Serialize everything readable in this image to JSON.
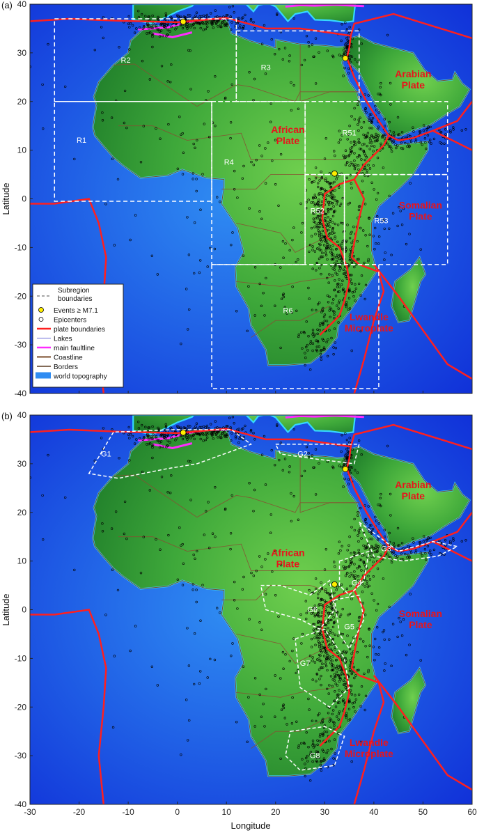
{
  "axes": {
    "xlabel": "Longitude",
    "ylabel": "Latitude",
    "x_ticks": [
      -30,
      -20,
      -10,
      0,
      10,
      20,
      30,
      40,
      50,
      60
    ],
    "y_ticks": [
      40,
      30,
      20,
      10,
      0,
      -10,
      -20,
      -30,
      -40
    ],
    "xlim": [
      -30,
      60
    ],
    "ylim": [
      -40,
      40
    ]
  },
  "colors": {
    "ocean_deep": "#1030d8",
    "ocean_shallow": "#2f8cf2",
    "land_low": "#1f7d2a",
    "land_high": "#6fcf4e",
    "plate_boundary": "#ff1f1f",
    "faultline": "#ff2bff",
    "coastline": "#7a4b2a",
    "subregion": "#ffffff",
    "event": "#ffee00",
    "plate_label": "#e8141b"
  },
  "panels": [
    {
      "label": "(a)",
      "regions": [
        {
          "name": "R1",
          "lon": -19.5,
          "lat": 11.5,
          "rect": [
            -25,
            20,
            7,
            -0.5
          ]
        },
        {
          "name": "R2",
          "lon": -10.5,
          "lat": 28.0,
          "rect": [
            -25,
            37,
            12,
            20
          ]
        },
        {
          "name": "R3",
          "lon": 18.0,
          "lat": 26.5,
          "rect": [
            12,
            34.5,
            37,
            20
          ]
        },
        {
          "name": "R4",
          "lon": 10.5,
          "lat": 7.0,
          "rect": [
            7,
            20,
            26,
            -13.5
          ]
        },
        {
          "name": "R51",
          "lon": 35.0,
          "lat": 13.0,
          "rect": [
            26,
            20,
            55,
            5
          ]
        },
        {
          "name": "R52",
          "lon": 28.5,
          "lat": -3.0,
          "rect": [
            26,
            5,
            34,
            -13.5
          ]
        },
        {
          "name": "R53",
          "lon": 41.5,
          "lat": -5.0,
          "rect": [
            34,
            5,
            55,
            -13.5
          ]
        },
        {
          "name": "R6",
          "lon": 22.5,
          "lat": -23.5,
          "rect": [
            7,
            -13.5,
            41,
            -39
          ]
        }
      ],
      "plates": [
        {
          "lines": [
            "African",
            "Plate"
          ],
          "lon": 22.5,
          "lat": 13.5
        },
        {
          "lines": [
            "Arabian",
            "Plate"
          ],
          "lon": 48.0,
          "lat": 25.0
        },
        {
          "lines": [
            "Somalian",
            "Plate"
          ],
          "lon": 49.5,
          "lat": -2.0
        },
        {
          "lines": [
            "Lwandle",
            "Microplate"
          ],
          "lon": 39.0,
          "lat": -25.0
        }
      ],
      "events": [
        [
          1.2,
          36.4
        ],
        [
          34.2,
          28.9
        ],
        [
          32.0,
          5.2
        ]
      ],
      "legend": [
        {
          "label": "Subregion boundaries",
          "symbol": "dashed"
        },
        {
          "label": "Events ≥ M7.1",
          "symbol": "event"
        },
        {
          "label": "Epicenters",
          "symbol": "epicenter"
        },
        {
          "label": "plate boundaries",
          "symbol": "plate"
        },
        {
          "label": "Lakes",
          "symbol": "lakes"
        },
        {
          "label": "main faultline",
          "symbol": "fault"
        },
        {
          "label": "Coastline",
          "symbol": "coast"
        },
        {
          "label": "Borders",
          "symbol": "border"
        },
        {
          "label": "world topography",
          "symbol": "topo"
        }
      ]
    },
    {
      "label": "(b)",
      "regions": [
        {
          "name": "G1",
          "lon": -14.5,
          "lat": 31.5,
          "poly": [
            [
              -18,
              28
            ],
            [
              -13,
              36.5
            ],
            [
              -1,
              37
            ],
            [
              11,
              37
            ],
            [
              15,
              34
            ],
            [
              4,
              30
            ],
            [
              -2,
              29
            ],
            [
              -12,
              27
            ]
          ]
        },
        {
          "name": "G2",
          "lon": 25.5,
          "lat": 31.5,
          "poly": [
            [
              20,
              34
            ],
            [
              37,
              34
            ],
            [
              36,
              30
            ],
            [
              28,
              31
            ],
            [
              21,
              32
            ]
          ]
        },
        {
          "name": "G3",
          "lon": 42.5,
          "lat": 12.0,
          "poly": [
            [
              37,
              18
            ],
            [
              45,
              12
            ],
            [
              52,
              14
            ],
            [
              57,
              13
            ],
            [
              53,
              11
            ],
            [
              46,
              10
            ],
            [
              40,
              11
            ]
          ]
        },
        {
          "name": "G4",
          "lon": 36.5,
          "lat": 5.0,
          "poly": [
            [
              33,
              10
            ],
            [
              39,
              12
            ],
            [
              38,
              6
            ],
            [
              35,
              3
            ],
            [
              33,
              5
            ]
          ]
        },
        {
          "name": "G5",
          "lon": 35.0,
          "lat": -4.0,
          "poly": [
            [
              32,
              2
            ],
            [
              37,
              3
            ],
            [
              38,
              -2
            ],
            [
              35,
              -8
            ],
            [
              33,
              -5
            ]
          ]
        },
        {
          "name": "G6",
          "lon": 27.5,
          "lat": -0.5,
          "poly": [
            [
              17,
              5
            ],
            [
              21,
              5
            ],
            [
              27,
              3
            ],
            [
              31,
              6
            ],
            [
              32,
              0
            ],
            [
              29,
              -4
            ],
            [
              25,
              -2
            ],
            [
              18,
              0
            ]
          ]
        },
        {
          "name": "G7",
          "lon": 26.0,
          "lat": -11.5,
          "poly": [
            [
              24,
              -6
            ],
            [
              30,
              -4
            ],
            [
              34,
              -10
            ],
            [
              35,
              -16
            ],
            [
              31,
              -20
            ],
            [
              25,
              -16
            ]
          ]
        },
        {
          "name": "G8",
          "lon": 28.0,
          "lat": -30.5,
          "poly": [
            [
              23,
              -25
            ],
            [
              30,
              -24
            ],
            [
              34,
              -26
            ],
            [
              32,
              -32
            ],
            [
              25,
              -33
            ],
            [
              22,
              -30
            ]
          ]
        }
      ],
      "plates": [
        {
          "lines": [
            "African",
            "Plate"
          ],
          "lon": 22.5,
          "lat": 11.0
        },
        {
          "lines": [
            "Arabian",
            "Plate"
          ],
          "lon": 48.0,
          "lat": 25.0
        },
        {
          "lines": [
            "Somalian",
            "Plate"
          ],
          "lon": 49.5,
          "lat": -1.5
        },
        {
          "lines": [
            "Lwandle",
            "Microplate"
          ],
          "lon": 39.0,
          "lat": -28.0
        }
      ],
      "events": [
        [
          1.2,
          36.4
        ],
        [
          34.2,
          28.9
        ],
        [
          32.0,
          5.2
        ]
      ]
    }
  ]
}
